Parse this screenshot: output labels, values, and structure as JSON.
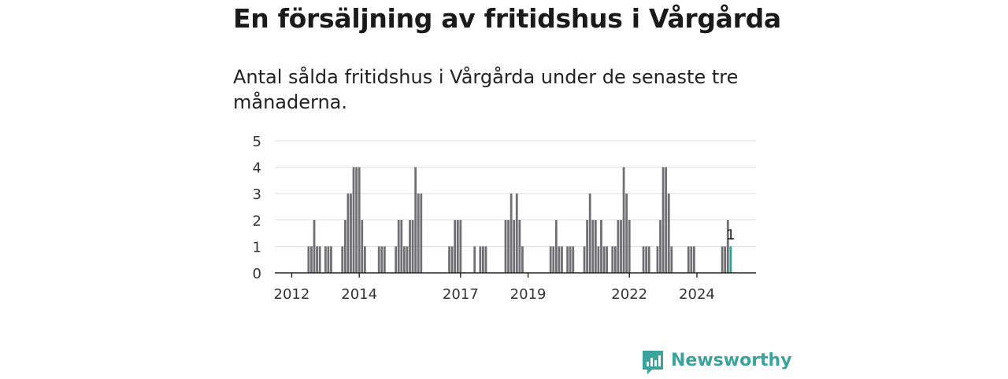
{
  "header": {
    "title": "En försäljning av fritidshus i Vårgårda",
    "subtitle": "Antal sålda fritidshus i Vårgårda under de senaste tre månaderna."
  },
  "brand": {
    "name": "Newsworthy",
    "icon": "newsworthy-logo-icon",
    "color": "#3aa39b"
  },
  "chart_data": {
    "type": "bar",
    "title": "En försäljning av fritidshus i Vårgårda",
    "subtitle": "Antal sålda fritidshus i Vårgårda under de senaste tre månaderna.",
    "xlabel": "",
    "ylabel": "",
    "ylim": [
      0,
      5
    ],
    "yticks": [
      0,
      1,
      2,
      3,
      4,
      5
    ],
    "x_tick_labels": [
      "2012",
      "2014",
      "2017",
      "2019",
      "2022",
      "2024"
    ],
    "x_range": [
      "2011-07",
      "2025-10"
    ],
    "grid": true,
    "bar_color": "#6f6f74",
    "highlight_color": "#2f9e96",
    "annotation": {
      "month": "2025-01",
      "text": "1"
    },
    "series": [
      {
        "values": [
          {
            "month": "2012-07",
            "value": 1
          },
          {
            "month": "2012-08",
            "value": 1
          },
          {
            "month": "2012-09",
            "value": 2
          },
          {
            "month": "2012-10",
            "value": 1
          },
          {
            "month": "2012-11",
            "value": 1
          },
          {
            "month": "2013-01",
            "value": 1
          },
          {
            "month": "2013-02",
            "value": 1
          },
          {
            "month": "2013-03",
            "value": 1
          },
          {
            "month": "2013-07",
            "value": 1
          },
          {
            "month": "2013-08",
            "value": 2
          },
          {
            "month": "2013-09",
            "value": 3
          },
          {
            "month": "2013-10",
            "value": 3
          },
          {
            "month": "2013-11",
            "value": 4
          },
          {
            "month": "2013-12",
            "value": 4
          },
          {
            "month": "2014-01",
            "value": 4
          },
          {
            "month": "2014-02",
            "value": 2
          },
          {
            "month": "2014-03",
            "value": 1
          },
          {
            "month": "2014-08",
            "value": 1
          },
          {
            "month": "2014-09",
            "value": 1
          },
          {
            "month": "2014-10",
            "value": 1
          },
          {
            "month": "2015-02",
            "value": 1
          },
          {
            "month": "2015-03",
            "value": 2
          },
          {
            "month": "2015-04",
            "value": 2
          },
          {
            "month": "2015-05",
            "value": 1
          },
          {
            "month": "2015-06",
            "value": 1
          },
          {
            "month": "2015-07",
            "value": 2
          },
          {
            "month": "2015-08",
            "value": 2
          },
          {
            "month": "2015-09",
            "value": 4
          },
          {
            "month": "2015-10",
            "value": 3
          },
          {
            "month": "2015-11",
            "value": 3
          },
          {
            "month": "2016-09",
            "value": 1
          },
          {
            "month": "2016-10",
            "value": 1
          },
          {
            "month": "2016-11",
            "value": 2
          },
          {
            "month": "2016-12",
            "value": 2
          },
          {
            "month": "2017-01",
            "value": 2
          },
          {
            "month": "2017-06",
            "value": 1
          },
          {
            "month": "2017-08",
            "value": 1
          },
          {
            "month": "2017-09",
            "value": 1
          },
          {
            "month": "2017-10",
            "value": 1
          },
          {
            "month": "2018-05",
            "value": 2
          },
          {
            "month": "2018-06",
            "value": 2
          },
          {
            "month": "2018-07",
            "value": 3
          },
          {
            "month": "2018-08",
            "value": 2
          },
          {
            "month": "2018-09",
            "value": 3
          },
          {
            "month": "2018-10",
            "value": 2
          },
          {
            "month": "2018-11",
            "value": 1
          },
          {
            "month": "2019-09",
            "value": 1
          },
          {
            "month": "2019-10",
            "value": 1
          },
          {
            "month": "2019-11",
            "value": 2
          },
          {
            "month": "2019-12",
            "value": 1
          },
          {
            "month": "2020-01",
            "value": 1
          },
          {
            "month": "2020-03",
            "value": 1
          },
          {
            "month": "2020-04",
            "value": 1
          },
          {
            "month": "2020-05",
            "value": 1
          },
          {
            "month": "2020-09",
            "value": 1
          },
          {
            "month": "2020-10",
            "value": 2
          },
          {
            "month": "2020-11",
            "value": 3
          },
          {
            "month": "2020-12",
            "value": 2
          },
          {
            "month": "2021-01",
            "value": 2
          },
          {
            "month": "2021-02",
            "value": 1
          },
          {
            "month": "2021-03",
            "value": 2
          },
          {
            "month": "2021-04",
            "value": 1
          },
          {
            "month": "2021-05",
            "value": 1
          },
          {
            "month": "2021-07",
            "value": 1
          },
          {
            "month": "2021-08",
            "value": 1
          },
          {
            "month": "2021-09",
            "value": 2
          },
          {
            "month": "2021-10",
            "value": 2
          },
          {
            "month": "2021-11",
            "value": 4
          },
          {
            "month": "2021-12",
            "value": 3
          },
          {
            "month": "2022-01",
            "value": 2
          },
          {
            "month": "2022-06",
            "value": 1
          },
          {
            "month": "2022-07",
            "value": 1
          },
          {
            "month": "2022-08",
            "value": 1
          },
          {
            "month": "2022-11",
            "value": 1
          },
          {
            "month": "2022-12",
            "value": 2
          },
          {
            "month": "2023-01",
            "value": 4
          },
          {
            "month": "2023-02",
            "value": 4
          },
          {
            "month": "2023-03",
            "value": 3
          },
          {
            "month": "2023-04",
            "value": 1
          },
          {
            "month": "2023-10",
            "value": 1
          },
          {
            "month": "2023-11",
            "value": 1
          },
          {
            "month": "2023-12",
            "value": 1
          },
          {
            "month": "2024-10",
            "value": 1
          },
          {
            "month": "2024-11",
            "value": 1
          },
          {
            "month": "2024-12",
            "value": 2
          },
          {
            "month": "2025-01",
            "value": 1,
            "highlight": true
          }
        ]
      }
    ]
  }
}
